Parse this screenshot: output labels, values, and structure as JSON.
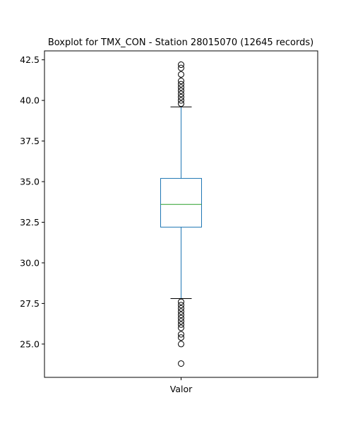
{
  "chart_data": {
    "type": "boxplot",
    "title": "Boxplot for TMX_CON - Station 28015070 (12645 records)",
    "xlabel": "",
    "ylabel": "",
    "categories": [
      "Valor"
    ],
    "ylim": [
      22.95,
      43.05
    ],
    "yticks": [
      25.0,
      27.5,
      30.0,
      32.5,
      35.0,
      37.5,
      40.0,
      42.5
    ],
    "ytick_labels": [
      "25.0",
      "27.5",
      "30.0",
      "32.5",
      "35.0",
      "37.5",
      "40.0",
      "42.5"
    ],
    "grid": false,
    "legend": "none",
    "box": {
      "whisker_low": 27.8,
      "q1": 32.2,
      "median": 33.6,
      "q3": 35.2,
      "whisker_high": 39.6
    },
    "outliers": [
      23.8,
      25.0,
      25.4,
      25.6,
      26.0,
      26.2,
      26.4,
      26.6,
      26.8,
      27.0,
      27.2,
      27.4,
      27.6,
      39.8,
      40.0,
      40.2,
      40.4,
      40.6,
      40.8,
      41.0,
      41.2,
      41.6,
      42.0,
      42.2
    ],
    "colors": {
      "box": "#1f77b4",
      "median": "#2ca02c",
      "cap": "#000000",
      "outlier": "#000000"
    }
  }
}
